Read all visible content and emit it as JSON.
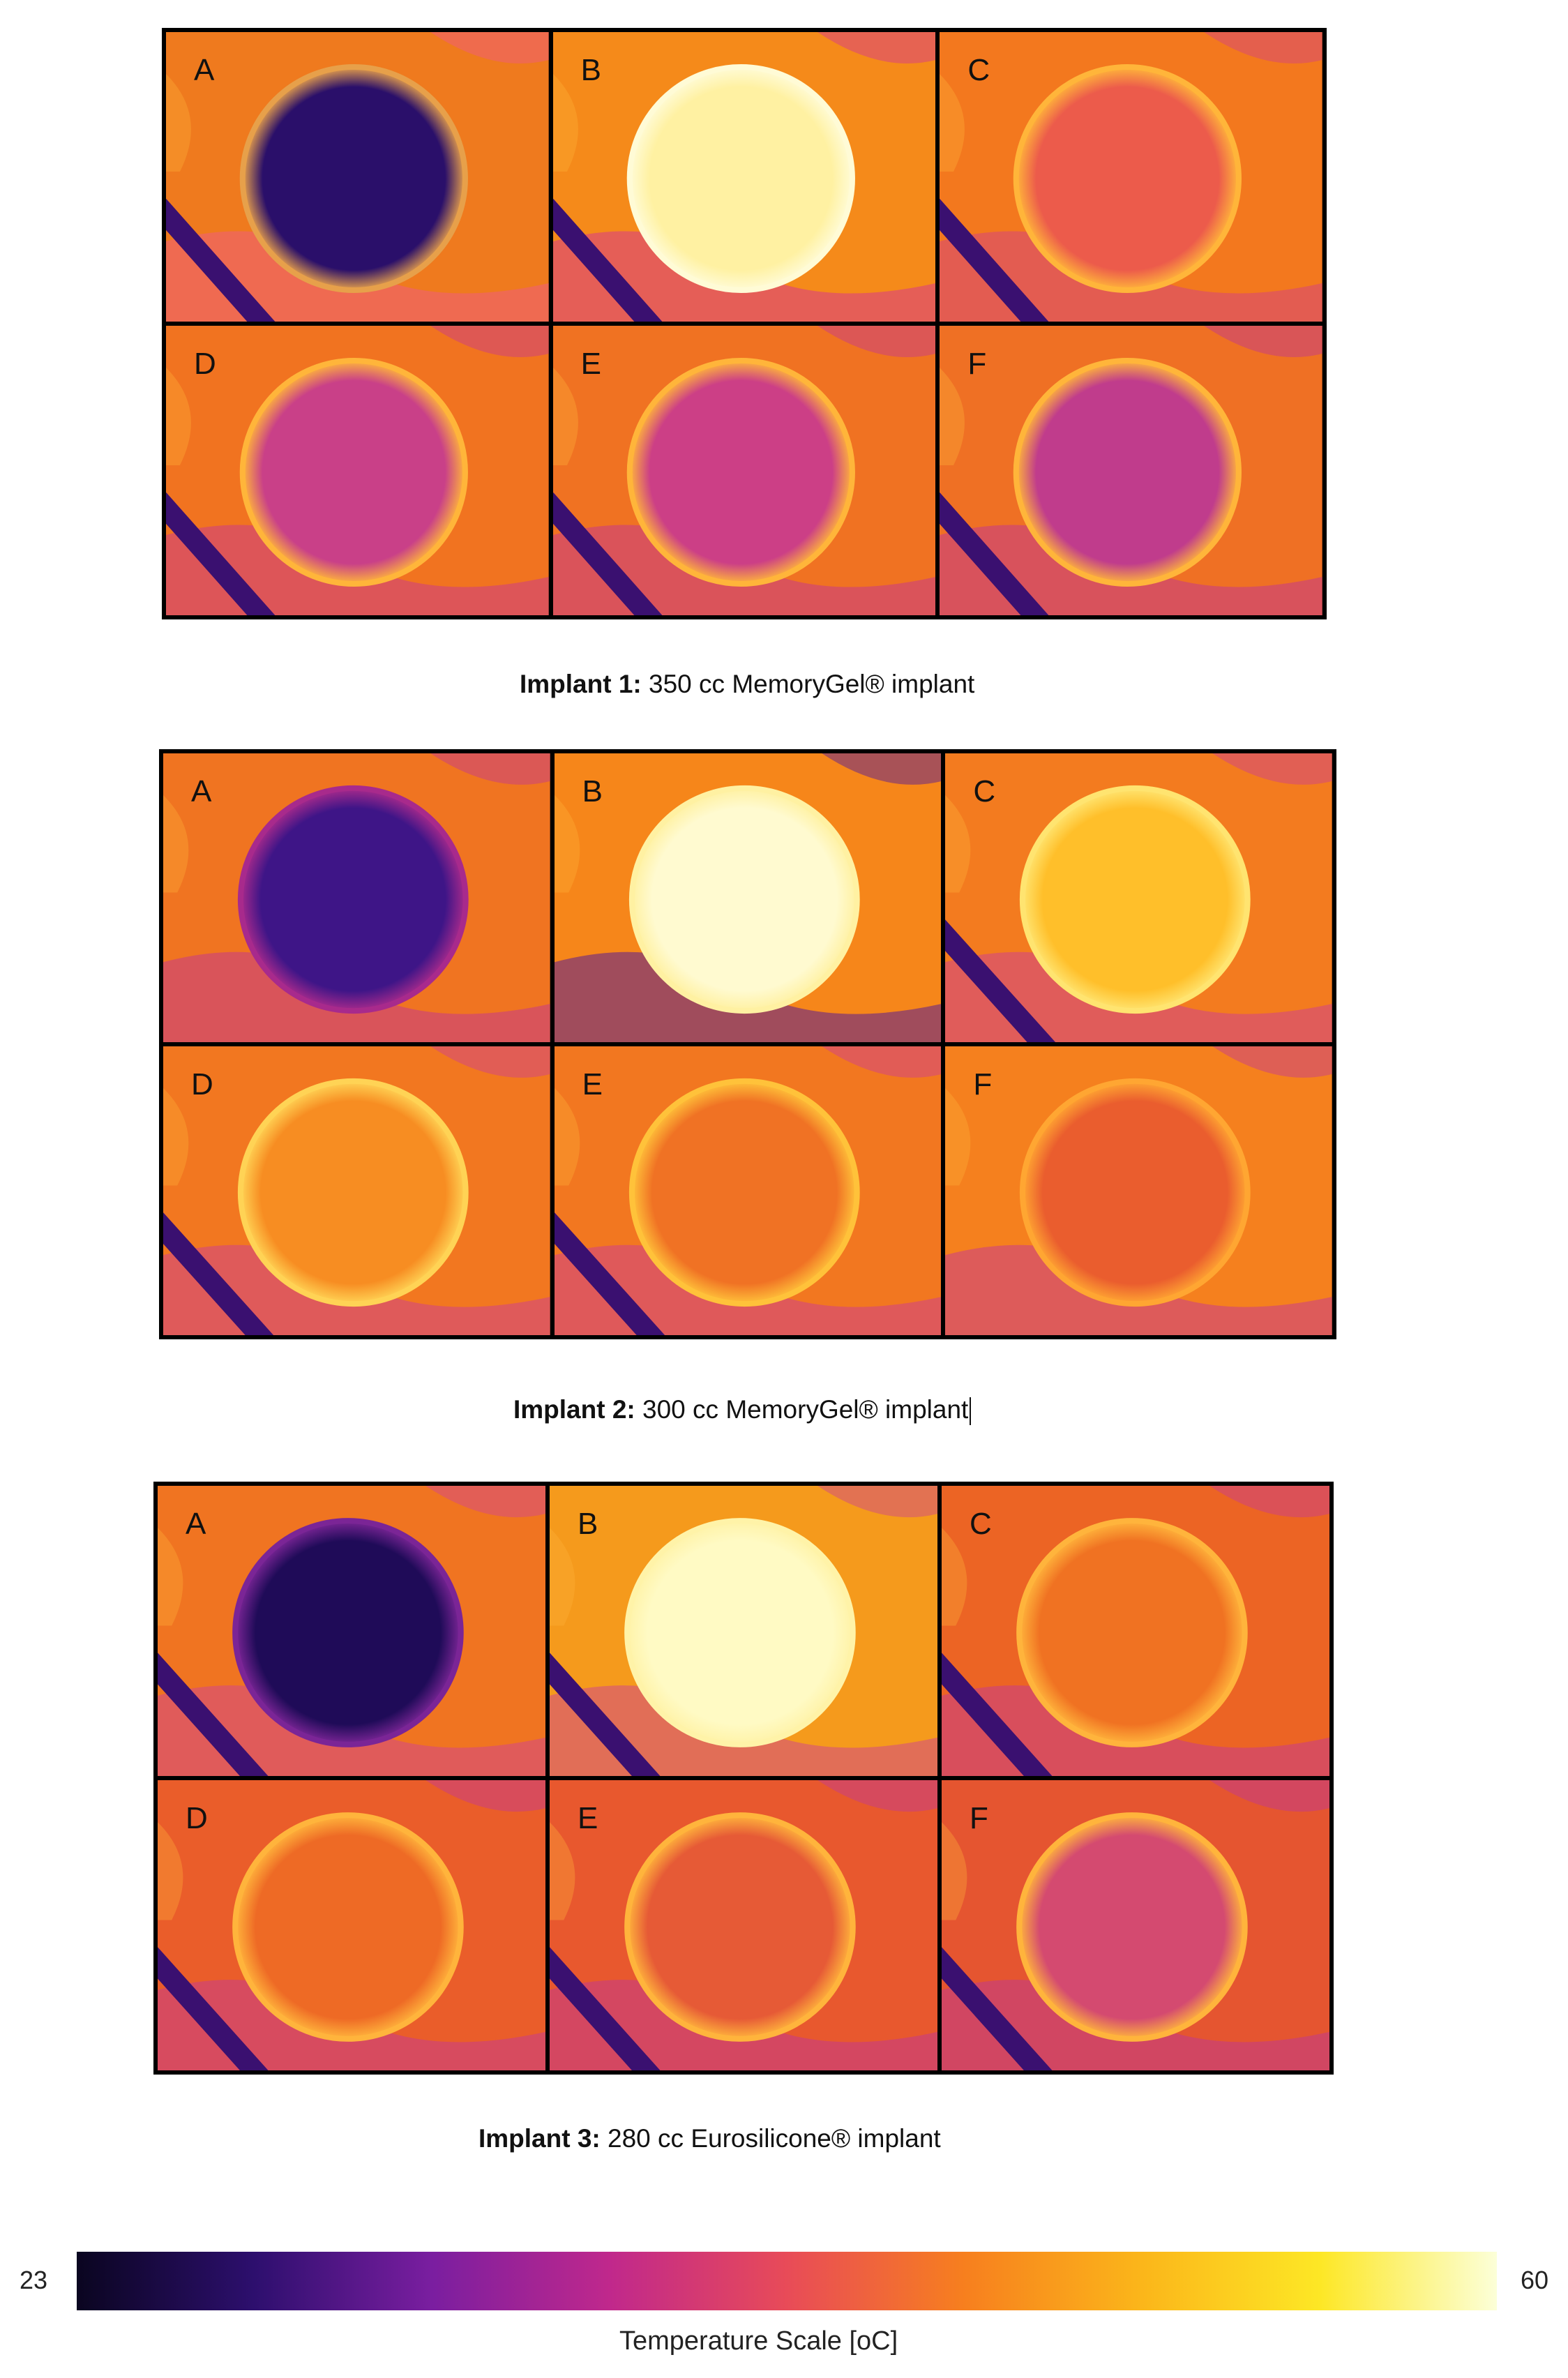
{
  "figures": [
    {
      "caption_bold": "Implant 1:",
      "caption_rest": " 350 cc MemoryGel® implant",
      "panels": [
        {
          "label": "A",
          "fill": "#2a0f6a",
          "edge": "#e7a04a",
          "bg": "#ef7a1e",
          "band": "#ef5c7b",
          "tool": true
        },
        {
          "label": "B",
          "fill": "#fff1a2",
          "edge": "#fffbd6",
          "bg": "#f58a1a",
          "band": "#d73b8a",
          "tool": true
        },
        {
          "label": "C",
          "fill": "#ec5b4b",
          "edge": "#ffb53a",
          "bg": "#f3781e",
          "band": "#d5467c",
          "tool": true
        },
        {
          "label": "D",
          "fill": "#c94088",
          "edge": "#ffb53a",
          "bg": "#f17320",
          "band": "#cc3d86",
          "tool": true
        },
        {
          "label": "E",
          "fill": "#cc3f86",
          "edge": "#ffb53a",
          "bg": "#f07222",
          "band": "#c83b88",
          "tool": true
        },
        {
          "label": "F",
          "fill": "#c03c8c",
          "edge": "#ffb53a",
          "bg": "#ef7024",
          "band": "#c43a8a",
          "tool": true
        }
      ]
    },
    {
      "caption_bold": "Implant 2:",
      "caption_rest": " 300 cc MemoryGel® implant",
      "panels": [
        {
          "label": "A",
          "fill": "#3e1587",
          "edge": "#a82a8c",
          "bg": "#f07421",
          "band": "#c63b8a",
          "tool": false
        },
        {
          "label": "B",
          "fill": "#fffad0",
          "edge": "#fff1a2",
          "bg": "#f6861a",
          "band": "#5a1d93",
          "tool": false
        },
        {
          "label": "C",
          "fill": "#ffbf2a",
          "edge": "#ffe470",
          "bg": "#f37b1f",
          "band": "#d0448a",
          "tool": true
        },
        {
          "label": "D",
          "fill": "#f78d22",
          "edge": "#ffd355",
          "bg": "#f27720",
          "band": "#d0438a",
          "tool": true
        },
        {
          "label": "E",
          "fill": "#f07224",
          "edge": "#ffc23a",
          "bg": "#f27720",
          "band": "#cf428b",
          "tool": true
        },
        {
          "label": "F",
          "fill": "#ea5d2e",
          "edge": "#ffa632",
          "bg": "#f5801e",
          "band": "#c83d8c",
          "tool": false
        }
      ]
    },
    {
      "caption_bold": "Implant 3:",
      "caption_rest": " 280 cc Eurosilicone® implant",
      "panels": [
        {
          "label": "A",
          "fill": "#1f0b58",
          "edge": "#7b2596",
          "bg": "#f07421",
          "band": "#d3478b",
          "tool": true
        },
        {
          "label": "B",
          "fill": "#fffac4",
          "edge": "#fff3a8",
          "bg": "#f59a1c",
          "band": "#d04a88",
          "tool": true
        },
        {
          "label": "C",
          "fill": "#f07222",
          "edge": "#ffb43c",
          "bg": "#ec6424",
          "band": "#c93d8a",
          "tool": true
        },
        {
          "label": "D",
          "fill": "#ee6a25",
          "edge": "#ffb43c",
          "bg": "#ea5d2a",
          "band": "#c63c8b",
          "tool": true
        },
        {
          "label": "E",
          "fill": "#e65a36",
          "edge": "#ffb43c",
          "bg": "#e8582e",
          "band": "#c33b8c",
          "tool": true
        },
        {
          "label": "F",
          "fill": "#d44a70",
          "edge": "#ffb43c",
          "bg": "#e55530",
          "band": "#c13a8d",
          "tool": true
        }
      ]
    }
  ],
  "scale": {
    "min": "23",
    "max": "60",
    "title": "Temperature Scale [oC]",
    "colors": [
      "#0a0520",
      "#2d0f6e",
      "#7a1ea0",
      "#c0288c",
      "#e84b58",
      "#f77f1e",
      "#fbb61a",
      "#fde725",
      "#fcffd8"
    ]
  }
}
